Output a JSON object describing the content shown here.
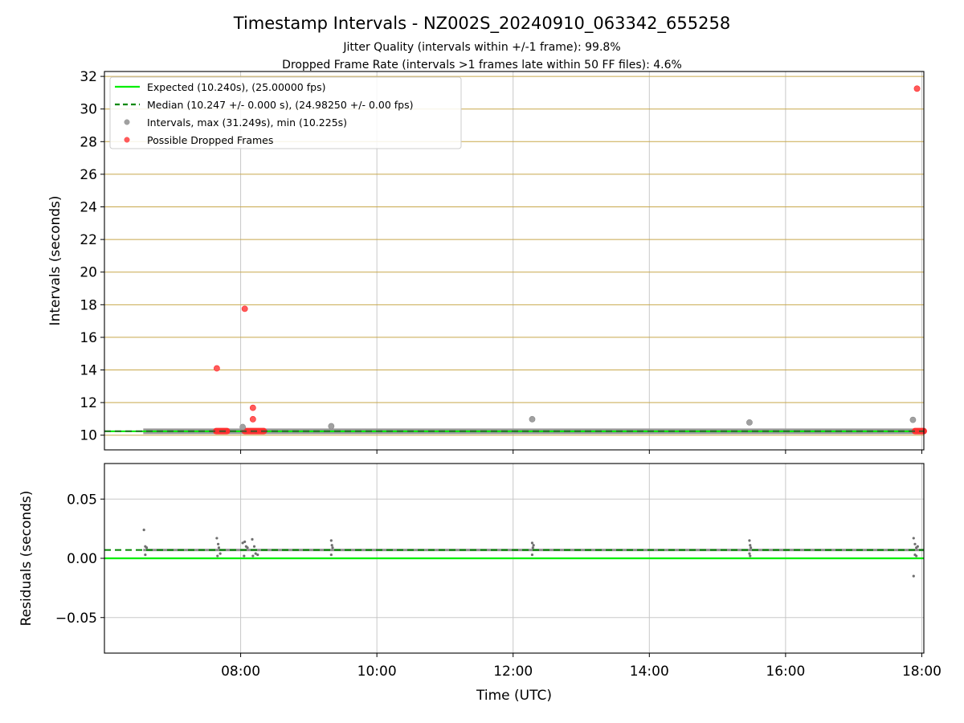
{
  "chart_data": {
    "type": "scatter",
    "title": "Timestamp Intervals - NZ002S_20240910_063342_655258",
    "subtitle_lines": [
      "Jitter Quality (intervals within +/-1 frame): 99.8%",
      "Dropped Frame Rate (intervals >1 frames late within 50 FF files): 4.6%"
    ],
    "xlabel": "Time (UTC)",
    "x_tick_labels": [
      "08:00",
      "10:00",
      "12:00",
      "14:00",
      "16:00",
      "18:00"
    ],
    "x_ticks_hours": [
      8,
      10,
      12,
      14,
      16,
      18
    ],
    "xlim_hours": [
      6.0,
      18.03
    ],
    "legend_position": "top-left",
    "colors": {
      "expected": "#00ee00",
      "median": "#008800",
      "intervals": "#808080",
      "dropped": "#ff0000",
      "top_grid": "#c8a84b",
      "grid": "#c8c8c8"
    },
    "panels": [
      {
        "name": "intervals",
        "ylabel": "Intervals (seconds)",
        "ylim": [
          9.1,
          32.3
        ],
        "y_ticks": [
          10,
          12,
          14,
          16,
          18,
          20,
          22,
          24,
          26,
          28,
          30,
          32
        ],
        "y_tick_labels": [
          "10",
          "12",
          "14",
          "16",
          "18",
          "20",
          "22",
          "24",
          "26",
          "28",
          "30",
          "32"
        ],
        "grid": "both",
        "expected_value": 10.24,
        "median_value": 10.247,
        "legend": [
          "Expected (10.240s), (25.00000 fps)",
          "Median (10.247 +/- 0.000 s), (24.98250 +/- 0.00 fps)",
          "Intervals, max (31.249s), min (10.225s)",
          "Possible Dropped Frames"
        ],
        "band": {
          "x_start": 6.57,
          "x_end": 18.03,
          "y": 10.24
        },
        "interval_outliers": [
          {
            "x": 8.03,
            "y": 10.5
          },
          {
            "x": 9.33,
            "y": 10.55
          },
          {
            "x": 12.28,
            "y": 10.98
          },
          {
            "x": 15.47,
            "y": 10.78
          },
          {
            "x": 17.87,
            "y": 10.94
          }
        ],
        "dropped_frames": [
          {
            "x": 7.65,
            "y": 14.1
          },
          {
            "x": 8.06,
            "y": 17.75
          },
          {
            "x": 8.18,
            "y": 11.68
          },
          {
            "x": 8.18,
            "y": 10.98
          },
          {
            "x": 17.93,
            "y": 31.25
          }
        ],
        "dropped_runs": [
          {
            "x_start": 7.64,
            "x_end": 7.8,
            "y": 10.25
          },
          {
            "x_start": 8.06,
            "x_end": 8.34,
            "y": 10.25
          },
          {
            "x_start": 17.9,
            "x_end": 18.03,
            "y": 10.25
          }
        ]
      },
      {
        "name": "residuals",
        "ylabel": "Residuals (seconds)",
        "ylim": [
          -0.08,
          0.08
        ],
        "y_ticks": [
          -0.05,
          0.0,
          0.05
        ],
        "y_tick_labels": [
          "−0.05",
          "0.00",
          "0.05"
        ],
        "grid": "both",
        "expected_value": 0.0,
        "median_value": 0.007,
        "residual_outliers": [
          {
            "x": 6.58,
            "y": 0.024
          },
          {
            "x": 6.6,
            "y": 0.01
          },
          {
            "x": 6.62,
            "y": 0.009
          },
          {
            "x": 6.6,
            "y": 0.003
          },
          {
            "x": 7.65,
            "y": 0.017
          },
          {
            "x": 7.67,
            "y": 0.012
          },
          {
            "x": 7.68,
            "y": 0.009
          },
          {
            "x": 7.7,
            "y": 0.004
          },
          {
            "x": 7.66,
            "y": 0.002
          },
          {
            "x": 8.03,
            "y": 0.013
          },
          {
            "x": 8.06,
            "y": 0.014
          },
          {
            "x": 8.08,
            "y": 0.01
          },
          {
            "x": 8.1,
            "y": 0.009
          },
          {
            "x": 8.05,
            "y": 0.002
          },
          {
            "x": 8.17,
            "y": 0.016
          },
          {
            "x": 8.2,
            "y": 0.01
          },
          {
            "x": 8.22,
            "y": 0.004
          },
          {
            "x": 8.25,
            "y": 0.003
          },
          {
            "x": 8.18,
            "y": 0.002
          },
          {
            "x": 9.33,
            "y": 0.015
          },
          {
            "x": 9.34,
            "y": 0.011
          },
          {
            "x": 9.35,
            "y": 0.009
          },
          {
            "x": 9.33,
            "y": 0.003
          },
          {
            "x": 12.28,
            "y": 0.013
          },
          {
            "x": 12.3,
            "y": 0.011
          },
          {
            "x": 12.29,
            "y": 0.009
          },
          {
            "x": 12.28,
            "y": 0.003
          },
          {
            "x": 15.47,
            "y": 0.015
          },
          {
            "x": 15.48,
            "y": 0.011
          },
          {
            "x": 15.49,
            "y": 0.009
          },
          {
            "x": 15.47,
            "y": 0.004
          },
          {
            "x": 15.48,
            "y": 0.002
          },
          {
            "x": 17.88,
            "y": 0.017
          },
          {
            "x": 17.9,
            "y": 0.012
          },
          {
            "x": 17.92,
            "y": 0.009
          },
          {
            "x": 17.94,
            "y": 0.01
          },
          {
            "x": 17.9,
            "y": 0.003
          },
          {
            "x": 17.92,
            "y": 0.002
          },
          {
            "x": 17.88,
            "y": -0.015
          }
        ],
        "residual_band": {
          "x_start": 6.57,
          "x_end": 18.03,
          "y": 0.007
        }
      }
    ]
  }
}
